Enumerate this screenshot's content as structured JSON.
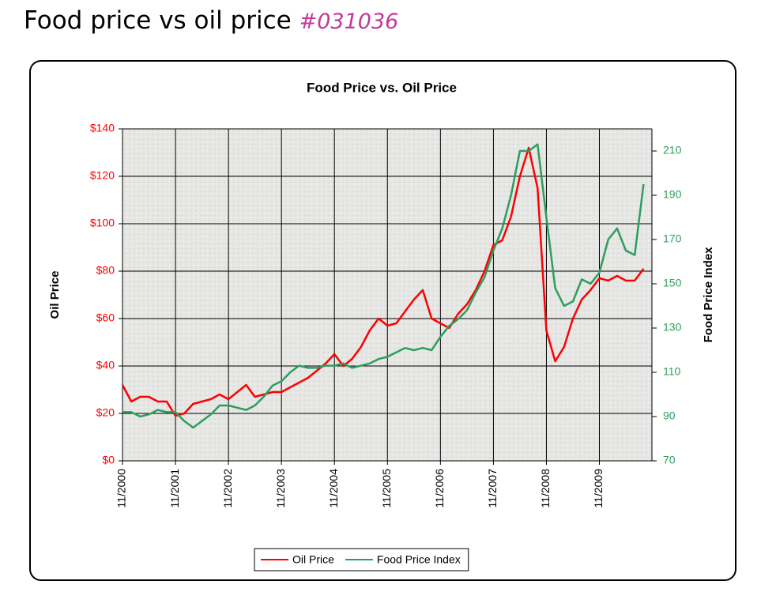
{
  "header": {
    "title": "Food price vs oil price",
    "tag": "#031036"
  },
  "chart_data": {
    "type": "line",
    "title": "Food Price vs. Oil Price",
    "x": [
      "11/2000",
      "1/2001",
      "3/2001",
      "5/2001",
      "7/2001",
      "9/2001",
      "11/2001",
      "1/2002",
      "3/2002",
      "5/2002",
      "7/2002",
      "9/2002",
      "11/2002",
      "1/2003",
      "3/2003",
      "5/2003",
      "7/2003",
      "9/2003",
      "11/2003",
      "1/2004",
      "3/2004",
      "5/2004",
      "7/2004",
      "9/2004",
      "11/2004",
      "1/2005",
      "3/2005",
      "5/2005",
      "7/2005",
      "9/2005",
      "11/2005",
      "1/2006",
      "3/2006",
      "5/2006",
      "7/2006",
      "9/2006",
      "11/2006",
      "1/2007",
      "3/2007",
      "5/2007",
      "7/2007",
      "9/2007",
      "11/2007",
      "1/2008",
      "3/2008",
      "5/2008",
      "7/2008",
      "9/2008",
      "11/2008",
      "1/2009",
      "3/2009",
      "5/2009",
      "7/2009",
      "9/2009",
      "11/2009",
      "1/2010",
      "3/2010",
      "5/2010",
      "7/2010",
      "9/2010"
    ],
    "xticks": [
      "11/2000",
      "11/2001",
      "11/2002",
      "11/2003",
      "11/2004",
      "11/2005",
      "11/2006",
      "11/2007",
      "11/2008",
      "11/2009"
    ],
    "y_label": "Oil Price",
    "y2_label": "Food Price Index",
    "ylim": [
      0,
      140
    ],
    "yticks": [
      {
        "value": 0,
        "label": "$0"
      },
      {
        "value": 20,
        "label": "$20"
      },
      {
        "value": 40,
        "label": "$40"
      },
      {
        "value": 60,
        "label": "$60"
      },
      {
        "value": 80,
        "label": "$80"
      },
      {
        "value": 100,
        "label": "$100"
      },
      {
        "value": 120,
        "label": "$120"
      },
      {
        "value": 140,
        "label": "$140"
      }
    ],
    "y2lim": [
      70,
      220
    ],
    "y2ticks": [
      70,
      90,
      110,
      130,
      150,
      170,
      190,
      210
    ],
    "grid": true,
    "legend": "bottom",
    "series": [
      {
        "name": "Oil Price",
        "color": "#ff0000",
        "axis": "y",
        "values": [
          32,
          25,
          27,
          27,
          25,
          25,
          19,
          20,
          24,
          25,
          26,
          28,
          26,
          29,
          32,
          27,
          28,
          29,
          29,
          31,
          33,
          35,
          38,
          41,
          45,
          40,
          43,
          48,
          55,
          60,
          57,
          58,
          63,
          68,
          72,
          60,
          58,
          56,
          62,
          66,
          72,
          80,
          91,
          93,
          103,
          120,
          132,
          115,
          55,
          42,
          48,
          60,
          68,
          72,
          77,
          76,
          78,
          76,
          76,
          81
        ]
      },
      {
        "name": "Food Price Index",
        "color": "#2e9e5e",
        "axis": "y2",
        "values": [
          92,
          92,
          90,
          91,
          93,
          92,
          92,
          88,
          85,
          88,
          91,
          95,
          95,
          94,
          93,
          95,
          99,
          104,
          106,
          110,
          113,
          112,
          112,
          113,
          113,
          114,
          112,
          113,
          114,
          116,
          117,
          119,
          121,
          120,
          121,
          120,
          126,
          131,
          134,
          138,
          146,
          153,
          165,
          175,
          190,
          210,
          210,
          213,
          180,
          148,
          140,
          142,
          152,
          150,
          155,
          170,
          175,
          165,
          163,
          195
        ]
      }
    ]
  }
}
